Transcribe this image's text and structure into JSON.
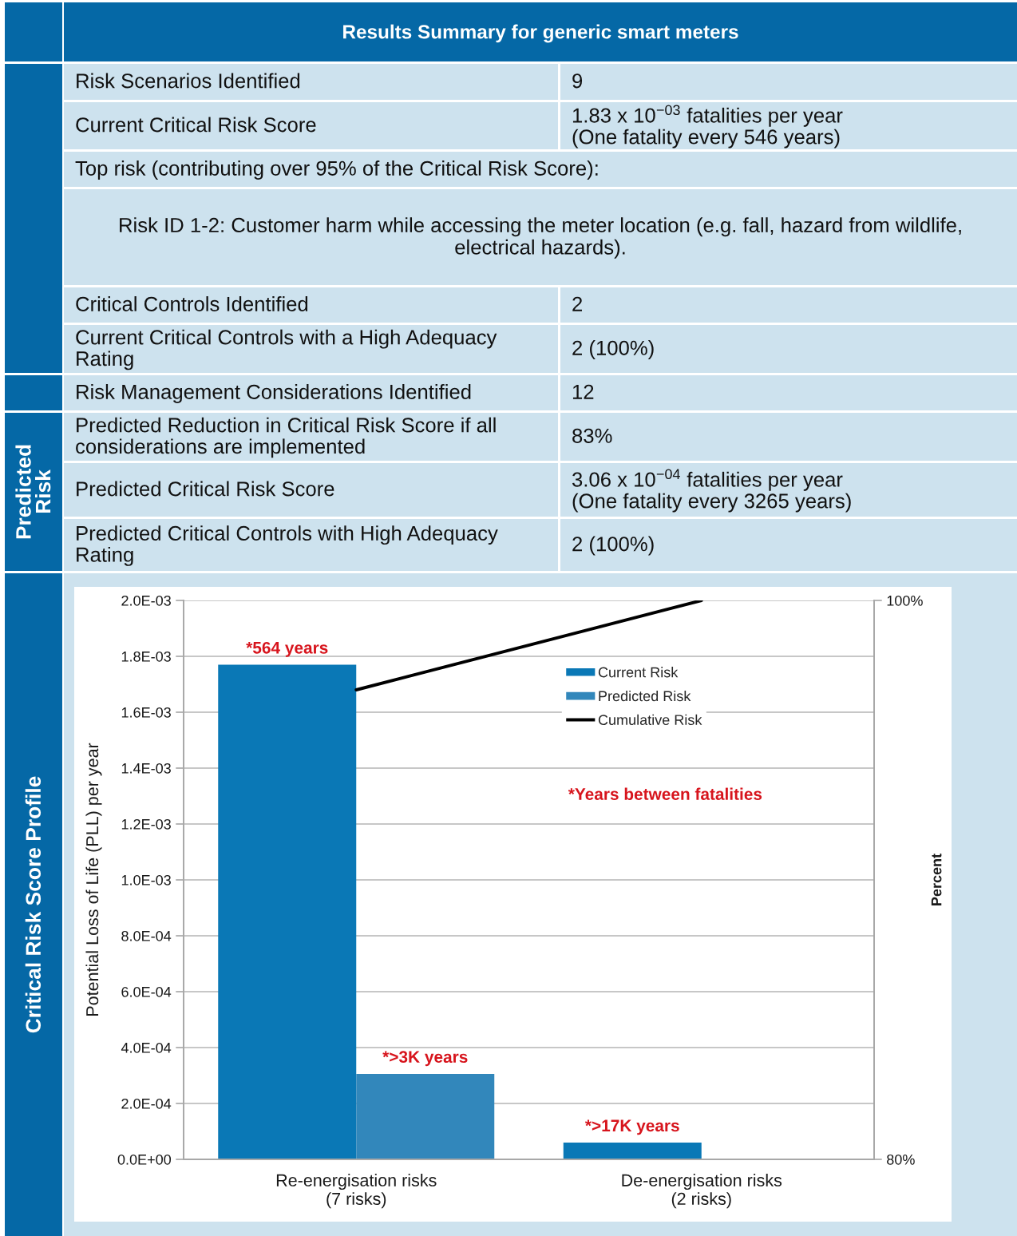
{
  "chart_data": [
    {
      "type": "other",
      "title": "Results Summary for generic smart meters",
      "annotations": [
        "Risk Scenarios Identified",
        "9",
        "Current Critical Risk Score",
        "1.83 x 10$^{−03}$ fatalities per year\n(One fatality every 546 years)",
        "Top risk (contributing over 95% of the Critical Risk Score):",
        "Risk ID 1-2: Customer harm while accessing the meter location (e.g. fall, hazard from wildlife,\nelectrical hazards).",
        "Critical Controls Identified",
        "2",
        "Current Critical Controls with a High Adequacy\nRating",
        "2 (100%)",
        "Risk Management Considerations Identified",
        "12",
        "Predicted Reduction in Critical Risk Score if all\nconsiderations are implemented",
        "83%",
        "Predicted Critical Risk Score",
        "3.06 x 10$^{−04}$ fatalities per year\n(One fatality every 3265 years)",
        "Predicted Critical Controls with High Adequacy\nRating",
        "2 (100%)",
        "Predicted\nRisk"
      ]
    },
    {
      "type": "bar",
      "title": "Critical Risk Score Profile",
      "categories": [
        "Re-energisation risks\n(7 risks)",
        "De-energisation risks\n(2 risks)"
      ],
      "series": [
        {
          "name": "Current Risk",
          "color": "#0a78b6",
          "values": [
            0.00177,
            6e-05
          ]
        },
        {
          "name": "Predicted Risk",
          "color": "#3287bb",
          "values": [
            0.000306,
            null
          ]
        },
        {
          "name": "Cumulative Risk",
          "type": "line",
          "axis": "y2",
          "color": "#000000",
          "values": [
            96.8,
            100
          ]
        }
      ],
      "ylabel": "Potential Loss of Life (PLL) per year",
      "y2label": "Percent",
      "ylim": [
        0,
        0.002
      ],
      "yticks": [
        {
          "value": 0,
          "label": "0.0E+00"
        },
        {
          "value": 0.0002,
          "label": "2.0E-04"
        },
        {
          "value": 0.0004,
          "label": "4.0E-04"
        },
        {
          "value": 0.0006,
          "label": "6.0E-04"
        },
        {
          "value": 0.0008,
          "label": "8.0E-04"
        },
        {
          "value": 0.001,
          "label": "1.0E-03"
        },
        {
          "value": 0.0012,
          "label": "1.2E-03"
        },
        {
          "value": 0.0014,
          "label": "1.4E-03"
        },
        {
          "value": 0.0016,
          "label": "1.6E-03"
        },
        {
          "value": 0.0018,
          "label": "1.8E-03"
        },
        {
          "value": 0.002,
          "label": "2.0E-03"
        }
      ],
      "y2lim": [
        80,
        100
      ],
      "y2ticks": [
        {
          "value": 80,
          "label": "80%"
        },
        {
          "value": 100,
          "label": "100%"
        }
      ],
      "annotations": [
        "*Years between fatalities",
        {
          "text": "*564 years",
          "x": "Re-energisation risks\n(7 risks)",
          "y": 0.00177
        },
        {
          "text": "*>3K years",
          "x": "Re-energisation risks\n(7 risks)",
          "y": 0.000306
        },
        {
          "text": "*>17K years",
          "x": "De-energisation risks\n(2 risks)",
          "y": 6e-05
        }
      ],
      "grid": "y",
      "legend": "top right"
    }
  ]
}
